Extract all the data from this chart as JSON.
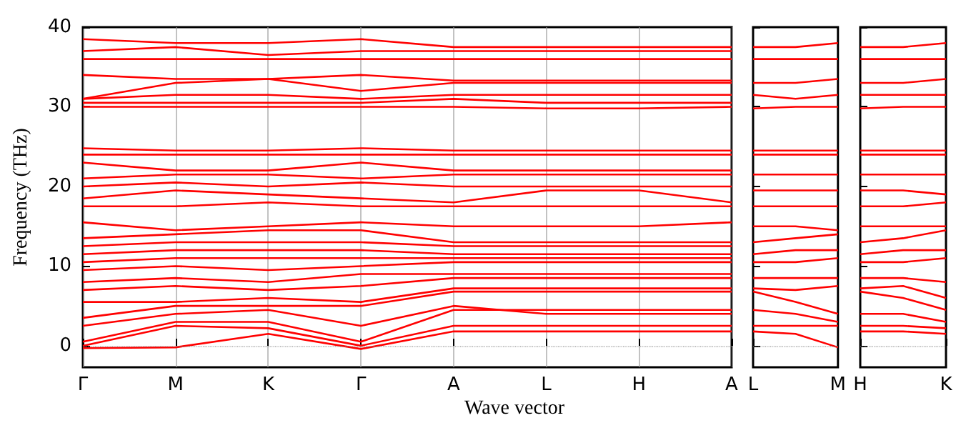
{
  "chart_data": [
    {
      "type": "line",
      "xlabel": "Wave vector",
      "ylabel": "Frequency (THz)",
      "categories": [
        "Γ",
        "M",
        "K",
        "Γ",
        "A",
        "L",
        "H",
        "A"
      ],
      "ylim": [
        -2.7,
        40
      ],
      "yticks": [
        0,
        10,
        20,
        30,
        40
      ],
      "grid": "x",
      "ref_lines": [
        {
          "axis": "y",
          "value": 0,
          "line_style": "dotted",
          "color": "#808080"
        }
      ],
      "series": [
        {
          "color": "#ff0000",
          "values": [
            -0.3,
            -0.2,
            1.5,
            -0.4,
            1.8,
            1.8,
            1.8,
            1.8
          ]
        },
        {
          "color": "#ff0000",
          "values": [
            0,
            2.5,
            2.2,
            0,
            2.5,
            2.5,
            2.5,
            2.5
          ]
        },
        {
          "color": "#ff0000",
          "values": [
            0.5,
            3,
            3,
            0.5,
            4.5,
            4.5,
            4.5,
            4.5
          ]
        },
        {
          "color": "#ff0000",
          "values": [
            2.5,
            4,
            4.5,
            2.5,
            5,
            4,
            4,
            4
          ]
        },
        {
          "color": "#ff0000",
          "values": [
            3.5,
            5,
            5,
            5,
            6.8,
            6.8,
            6.8,
            6.8
          ]
        },
        {
          "color": "#ff0000",
          "values": [
            5.5,
            5.5,
            6,
            5.5,
            7.2,
            7.2,
            7.2,
            7.2
          ]
        },
        {
          "color": "#ff0000",
          "values": [
            7,
            7.5,
            7,
            7.5,
            8.5,
            8.5,
            8.5,
            8.5
          ]
        },
        {
          "color": "#ff0000",
          "values": [
            8,
            8.5,
            8,
            9,
            9,
            9,
            9,
            9
          ]
        },
        {
          "color": "#ff0000",
          "values": [
            9.5,
            10,
            9.5,
            10,
            10.5,
            10.5,
            10.5,
            10.5
          ]
        },
        {
          "color": "#ff0000",
          "values": [
            10.5,
            11,
            11,
            11,
            11,
            11,
            11,
            11
          ]
        },
        {
          "color": "#ff0000",
          "values": [
            11.5,
            12,
            12,
            12,
            11.5,
            11.5,
            11.5,
            11.5
          ]
        },
        {
          "color": "#ff0000",
          "values": [
            12.5,
            13,
            13,
            13,
            12.5,
            12.5,
            12.5,
            12.5
          ]
        },
        {
          "color": "#ff0000",
          "values": [
            13.5,
            14,
            14.5,
            14.5,
            13,
            13,
            13,
            13
          ]
        },
        {
          "color": "#ff0000",
          "values": [
            15.5,
            14.5,
            15,
            15.5,
            15,
            15,
            15,
            15.5
          ]
        },
        {
          "color": "#ff0000",
          "values": [
            17.5,
            17.5,
            18,
            17.5,
            17.5,
            17.5,
            17.5,
            17.5
          ]
        },
        {
          "color": "#ff0000",
          "values": [
            18.5,
            19.5,
            19,
            18.5,
            18,
            19.5,
            19.5,
            18
          ]
        },
        {
          "color": "#ff0000",
          "values": [
            20,
            20.5,
            20,
            20.5,
            20,
            20,
            20,
            20
          ]
        },
        {
          "color": "#ff0000",
          "values": [
            21,
            21.5,
            21.5,
            21,
            21.5,
            21.5,
            21.5,
            21.5
          ]
        },
        {
          "color": "#ff0000",
          "values": [
            23,
            22,
            22,
            23,
            22,
            22,
            22,
            22
          ]
        },
        {
          "color": "#ff0000",
          "values": [
            24,
            24,
            24,
            24,
            24,
            24,
            24,
            24
          ]
        },
        {
          "color": "#ff0000",
          "values": [
            24.8,
            24.5,
            24.5,
            24.8,
            24.5,
            24.5,
            24.5,
            24.5
          ]
        },
        {
          "color": "#ff0000",
          "values": [
            30,
            30,
            30,
            30,
            30,
            29.8,
            29.8,
            30
          ]
        },
        {
          "color": "#ff0000",
          "values": [
            30.5,
            30.5,
            30.5,
            30.5,
            31,
            30.5,
            30.5,
            30.5
          ]
        },
        {
          "color": "#ff0000",
          "values": [
            31,
            31.5,
            31.5,
            31,
            31.5,
            31.5,
            31.5,
            31.5
          ]
        },
        {
          "color": "#ff0000",
          "values": [
            31,
            33,
            33.5,
            32,
            33,
            33,
            33,
            33
          ]
        },
        {
          "color": "#ff0000",
          "values": [
            34,
            33.5,
            33.5,
            34,
            33.3,
            33.3,
            33.3,
            33.3
          ]
        },
        {
          "color": "#ff0000",
          "values": [
            36,
            36,
            36,
            36,
            36,
            36,
            36,
            36
          ]
        },
        {
          "color": "#ff0000",
          "values": [
            37,
            37.5,
            36.5,
            37,
            37,
            37,
            37,
            37
          ]
        },
        {
          "color": "#ff0000",
          "values": [
            38.5,
            38,
            38,
            38.5,
            37.5,
            37.5,
            37.5,
            37.5
          ]
        }
      ]
    },
    {
      "type": "line",
      "categories": [
        "L",
        null,
        "M"
      ],
      "ylim": [
        -2.7,
        40
      ],
      "yticks": [
        0,
        10,
        20,
        30,
        40
      ],
      "tick_labels": "x",
      "ref_lines": [
        {
          "axis": "y",
          "value": 0,
          "line_style": "dotted",
          "color": "#808080"
        }
      ],
      "series": [
        {
          "color": "#ff0000",
          "values": [
            1.8,
            1.5,
            -0.2
          ]
        },
        {
          "color": "#ff0000",
          "values": [
            2.5,
            2.5,
            2.5
          ]
        },
        {
          "color": "#ff0000",
          "values": [
            4.5,
            4,
            3
          ]
        },
        {
          "color": "#ff0000",
          "values": [
            6.8,
            5.5,
            4
          ]
        },
        {
          "color": "#ff0000",
          "values": [
            7.2,
            7,
            7.5
          ]
        },
        {
          "color": "#ff0000",
          "values": [
            8.5,
            8.5,
            8.5
          ]
        },
        {
          "color": "#ff0000",
          "values": [
            10.5,
            10.5,
            11
          ]
        },
        {
          "color": "#ff0000",
          "values": [
            11.5,
            12,
            12
          ]
        },
        {
          "color": "#ff0000",
          "values": [
            13,
            13.5,
            14
          ]
        },
        {
          "color": "#ff0000",
          "values": [
            15,
            15,
            14.5
          ]
        },
        {
          "color": "#ff0000",
          "values": [
            17.5,
            17.5,
            17.5
          ]
        },
        {
          "color": "#ff0000",
          "values": [
            19.5,
            19.5,
            19.5
          ]
        },
        {
          "color": "#ff0000",
          "values": [
            21.5,
            21.5,
            21.5
          ]
        },
        {
          "color": "#ff0000",
          "values": [
            24,
            24,
            24
          ]
        },
        {
          "color": "#ff0000",
          "values": [
            24.5,
            24.5,
            24.5
          ]
        },
        {
          "color": "#ff0000",
          "values": [
            29.8,
            30,
            30
          ]
        },
        {
          "color": "#ff0000",
          "values": [
            31.5,
            31,
            31.5
          ]
        },
        {
          "color": "#ff0000",
          "values": [
            33,
            33,
            33.5
          ]
        },
        {
          "color": "#ff0000",
          "values": [
            36,
            36,
            36
          ]
        },
        {
          "color": "#ff0000",
          "values": [
            37.5,
            37.5,
            38
          ]
        }
      ]
    },
    {
      "type": "line",
      "categories": [
        "H",
        null,
        "K"
      ],
      "ylim": [
        -2.7,
        40
      ],
      "yticks": [
        0,
        10,
        20,
        30,
        40
      ],
      "tick_labels": "x",
      "ref_lines": [
        {
          "axis": "y",
          "value": 0,
          "line_style": "dotted",
          "color": "#808080"
        }
      ],
      "series": [
        {
          "color": "#ff0000",
          "values": [
            1.8,
            1.8,
            1.5
          ]
        },
        {
          "color": "#ff0000",
          "values": [
            2.5,
            2.5,
            2.2
          ]
        },
        {
          "color": "#ff0000",
          "values": [
            4,
            4,
            3
          ]
        },
        {
          "color": "#ff0000",
          "values": [
            6.8,
            6,
            4.5
          ]
        },
        {
          "color": "#ff0000",
          "values": [
            7.2,
            7.5,
            6
          ]
        },
        {
          "color": "#ff0000",
          "values": [
            8.5,
            8.5,
            8
          ]
        },
        {
          "color": "#ff0000",
          "values": [
            10.5,
            10.5,
            11
          ]
        },
        {
          "color": "#ff0000",
          "values": [
            11.5,
            12,
            12
          ]
        },
        {
          "color": "#ff0000",
          "values": [
            13,
            13.5,
            14.5
          ]
        },
        {
          "color": "#ff0000",
          "values": [
            15,
            15,
            15
          ]
        },
        {
          "color": "#ff0000",
          "values": [
            17.5,
            17.5,
            18
          ]
        },
        {
          "color": "#ff0000",
          "values": [
            19.5,
            19.5,
            19
          ]
        },
        {
          "color": "#ff0000",
          "values": [
            21.5,
            21.5,
            21.5
          ]
        },
        {
          "color": "#ff0000",
          "values": [
            24,
            24,
            24
          ]
        },
        {
          "color": "#ff0000",
          "values": [
            24.5,
            24.5,
            24.5
          ]
        },
        {
          "color": "#ff0000",
          "values": [
            29.8,
            30,
            30
          ]
        },
        {
          "color": "#ff0000",
          "values": [
            31.5,
            31.5,
            31.5
          ]
        },
        {
          "color": "#ff0000",
          "values": [
            33,
            33,
            33.5
          ]
        },
        {
          "color": "#ff0000",
          "values": [
            36,
            36,
            36
          ]
        },
        {
          "color": "#ff0000",
          "values": [
            37.5,
            37.5,
            38
          ]
        }
      ]
    }
  ]
}
